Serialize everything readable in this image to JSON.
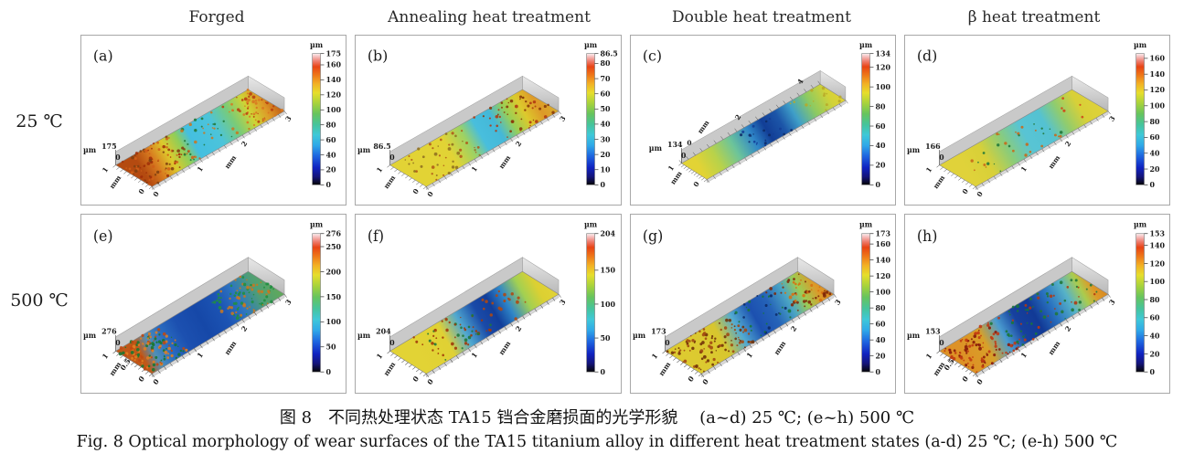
{
  "figure": {
    "column_headers": [
      "Forged",
      "Annealing heat treatment",
      "Double heat treatment",
      "β heat treatment"
    ],
    "row_labels": [
      "25 ℃",
      "500 ℃"
    ],
    "caption_zh": "图 8　不同热处理状态 TA15 铛合金磨损面的光学形貌　 (a~d) 25 ℃; (e~h) 500 ℃",
    "caption_en": "Fig. 8   Optical morphology of wear surfaces of the TA15 titanium alloy in different heat treatment states   (a-d) 25 ℃; (e-h) 500 ℃"
  },
  "chart_data": {
    "type": "heatmap",
    "variant": "3d-surface-profilometry",
    "z_unit": "µm",
    "xy_unit": "mm",
    "legend_position": "right-colorbar-per-panel",
    "colorbar_colors": [
      [
        "0%",
        "#050505"
      ],
      [
        "6%",
        "#141478"
      ],
      [
        "13%",
        "#1022c0"
      ],
      [
        "22%",
        "#1e66e0"
      ],
      [
        "30%",
        "#2fa8e8"
      ],
      [
        "38%",
        "#3fc8d8"
      ],
      [
        "46%",
        "#46c49a"
      ],
      [
        "54%",
        "#66c45e"
      ],
      [
        "62%",
        "#a6d23c"
      ],
      [
        "70%",
        "#e6de2c"
      ],
      [
        "77%",
        "#f2b024"
      ],
      [
        "84%",
        "#ee7418"
      ],
      [
        "90%",
        "#e84414"
      ],
      [
        "94%",
        "#ee7a6a"
      ],
      [
        "98%",
        "#f6c4c4"
      ],
      [
        "100%",
        "#fbefee"
      ]
    ],
    "panels": [
      {
        "id": "a",
        "label": "(a)",
        "row": "25 ℃",
        "column": "Forged",
        "z_max": 175,
        "z_max_label": "175",
        "z_min_label": "0",
        "colorbar_max": 175,
        "colorbar_ticks": [
          175,
          160,
          140,
          120,
          100,
          80,
          60,
          40,
          20,
          0
        ],
        "long_axis_ticks": [
          "0",
          "1",
          "2",
          "3"
        ],
        "long_axis_position": "bottom",
        "short_axis_ticks": [
          "1",
          "0"
        ],
        "narrow": false,
        "surface_gradient": [
          [
            "0%",
            "#b44a10"
          ],
          [
            "10%",
            "#d87c20"
          ],
          [
            "20%",
            "#ddc92c"
          ],
          [
            "30%",
            "#8fce58"
          ],
          [
            "38%",
            "#44bfe0"
          ],
          [
            "55%",
            "#4cc4da"
          ],
          [
            "68%",
            "#79cb78"
          ],
          [
            "80%",
            "#cfd434"
          ],
          [
            "90%",
            "#dd9928"
          ],
          [
            "100%",
            "#c05a14"
          ]
        ],
        "speckles": [
          {
            "from": 0.0,
            "to": 0.38,
            "count": 95,
            "colors": [
              "#a03008",
              "#d06018",
              "#804010"
            ]
          },
          {
            "from": 0.32,
            "to": 0.75,
            "count": 35,
            "colors": [
              "#207838",
              "#c87820"
            ]
          },
          {
            "from": 0.78,
            "to": 1.0,
            "count": 55,
            "colors": [
              "#b84010",
              "#d87820"
            ]
          }
        ]
      },
      {
        "id": "b",
        "label": "(b)",
        "row": "25 ℃",
        "column": "Annealing heat treatment",
        "z_max": 86.5,
        "z_max_label": "86.5",
        "z_min_label": "0",
        "colorbar_max": 86.5,
        "colorbar_ticks": [
          86.5,
          80,
          70,
          60,
          50,
          40,
          30,
          20,
          10,
          0
        ],
        "long_axis_ticks": [
          "0",
          "1",
          "2",
          "3"
        ],
        "long_axis_position": "bottom",
        "short_axis_ticks": [
          "1",
          "0"
        ],
        "narrow": false,
        "surface_gradient": [
          [
            "0%",
            "#e2d335"
          ],
          [
            "25%",
            "#e2d335"
          ],
          [
            "38%",
            "#9ed262"
          ],
          [
            "48%",
            "#48bedd"
          ],
          [
            "60%",
            "#44b8d8"
          ],
          [
            "70%",
            "#98cf56"
          ],
          [
            "80%",
            "#ddc92c"
          ],
          [
            "90%",
            "#dd9928"
          ],
          [
            "100%",
            "#d8ad2c"
          ]
        ],
        "speckles": [
          {
            "from": 0.05,
            "to": 0.5,
            "count": 45,
            "colors": [
              "#b05818",
              "#907020"
            ]
          },
          {
            "from": 0.62,
            "to": 1.0,
            "count": 50,
            "colors": [
              "#b03810",
              "#883808"
            ]
          }
        ]
      },
      {
        "id": "c",
        "label": "(c)",
        "row": "25 ℃",
        "column": "Double heat treatment",
        "z_max": 134,
        "z_max_label": "134",
        "z_min_label": "0",
        "colorbar_max": 134,
        "colorbar_ticks": [
          134,
          120,
          100,
          80,
          60,
          40,
          20,
          0
        ],
        "long_axis_ticks": [
          "2",
          "4"
        ],
        "long_axis_position": "top",
        "short_axis_ticks": [
          "1",
          "0"
        ],
        "narrow": true,
        "surface_gradient": [
          [
            "0%",
            "#e2d335"
          ],
          [
            "12%",
            "#b8d24a"
          ],
          [
            "25%",
            "#6cc49a"
          ],
          [
            "38%",
            "#2f86c8"
          ],
          [
            "48%",
            "#123e96"
          ],
          [
            "58%",
            "#1c55a8"
          ],
          [
            "68%",
            "#3f9fc8"
          ],
          [
            "80%",
            "#8cca62"
          ],
          [
            "92%",
            "#d2d238"
          ],
          [
            "100%",
            "#e2d335"
          ]
        ],
        "speckles": [
          {
            "from": 0.38,
            "to": 0.62,
            "count": 22,
            "colors": [
              "#0c2a66",
              "#123e96"
            ]
          },
          {
            "from": 0.75,
            "to": 1.0,
            "count": 14,
            "colors": [
              "#b8a828"
            ]
          }
        ]
      },
      {
        "id": "d",
        "label": "(d)",
        "row": "25 ℃",
        "column": "β heat treatment",
        "z_max": 166,
        "z_max_label": "166",
        "z_min_label": "0",
        "colorbar_max": 166,
        "colorbar_ticks": [
          160,
          140,
          120,
          100,
          80,
          60,
          40,
          20,
          0
        ],
        "long_axis_ticks": [
          "0",
          "1",
          "2",
          "3"
        ],
        "long_axis_position": "bottom",
        "short_axis_ticks": [
          "1",
          "0"
        ],
        "narrow": false,
        "surface_gradient": [
          [
            "0%",
            "#e0d23a"
          ],
          [
            "15%",
            "#d8d038"
          ],
          [
            "30%",
            "#8ccc78"
          ],
          [
            "45%",
            "#58c4d4"
          ],
          [
            "60%",
            "#54c2d2"
          ],
          [
            "72%",
            "#90cc6e"
          ],
          [
            "85%",
            "#d8d038"
          ],
          [
            "100%",
            "#e0d23a"
          ]
        ],
        "speckles": [
          {
            "from": 0.1,
            "to": 0.7,
            "count": 32,
            "colors": [
              "#c86818",
              "#207838"
            ]
          },
          {
            "from": 0.82,
            "to": 0.95,
            "count": 6,
            "colors": [
              "#d04818"
            ]
          }
        ]
      },
      {
        "id": "e",
        "label": "(e)",
        "row": "500 ℃",
        "column": "Forged",
        "z_max": 276,
        "z_max_label": "276",
        "z_min_label": "0",
        "colorbar_max": 276,
        "colorbar_ticks": [
          276,
          250,
          200,
          150,
          100,
          50,
          0
        ],
        "long_axis_ticks": [
          "0",
          "1",
          "2",
          "3"
        ],
        "long_axis_position": "bottom",
        "short_axis_ticks": [
          "1",
          "0.5",
          "0"
        ],
        "narrow": false,
        "surface_gradient": [
          [
            "0%",
            "#c05818"
          ],
          [
            "8%",
            "#5090b8"
          ],
          [
            "18%",
            "#2a6cc0"
          ],
          [
            "30%",
            "#1c50b0"
          ],
          [
            "45%",
            "#1648a8"
          ],
          [
            "60%",
            "#1c54b4"
          ],
          [
            "72%",
            "#2e74c0"
          ],
          [
            "85%",
            "#4e9e78"
          ],
          [
            "100%",
            "#62aa58"
          ]
        ],
        "speckles": [
          {
            "from": 0.0,
            "to": 0.3,
            "count": 120,
            "colors": [
              "#c04810",
              "#e08020",
              "#187830"
            ]
          },
          {
            "from": 0.65,
            "to": 1.0,
            "count": 85,
            "colors": [
              "#209040",
              "#c87820"
            ]
          }
        ]
      },
      {
        "id": "f",
        "label": "(f)",
        "row": "500 ℃",
        "column": "Annealing heat treatment",
        "z_max": 204,
        "z_max_label": "204",
        "z_min_label": "0",
        "colorbar_max": 204,
        "colorbar_ticks": [
          204,
          150,
          100,
          50,
          0
        ],
        "long_axis_ticks": [
          "0",
          "1",
          "2",
          "3"
        ],
        "long_axis_position": "bottom",
        "short_axis_ticks": [
          "1",
          "0"
        ],
        "narrow": false,
        "surface_gradient": [
          [
            "0%",
            "#e2d335"
          ],
          [
            "22%",
            "#e0d134"
          ],
          [
            "35%",
            "#50a8d0"
          ],
          [
            "48%",
            "#1a4aa8"
          ],
          [
            "58%",
            "#123e9a"
          ],
          [
            "68%",
            "#2f86c8"
          ],
          [
            "80%",
            "#a2d052"
          ],
          [
            "90%",
            "#dcd032"
          ],
          [
            "100%",
            "#e2d335"
          ]
        ],
        "speckles": [
          {
            "from": 0.15,
            "to": 0.55,
            "count": 55,
            "colors": [
              "#a03808",
              "#207838"
            ]
          },
          {
            "from": 0.6,
            "to": 0.85,
            "count": 18,
            "colors": [
              "#b04810"
            ]
          }
        ]
      },
      {
        "id": "g",
        "label": "(g)",
        "row": "500 ℃",
        "column": "Double heat treatment",
        "z_max": 173,
        "z_max_label": "173",
        "z_min_label": "0",
        "colorbar_max": 173,
        "colorbar_ticks": [
          173,
          160,
          140,
          120,
          100,
          80,
          60,
          40,
          20,
          0
        ],
        "long_axis_ticks": [
          "0",
          "1",
          "2",
          "3"
        ],
        "long_axis_position": "bottom",
        "short_axis_ticks": [
          "1",
          "0"
        ],
        "narrow": false,
        "surface_gradient": [
          [
            "0%",
            "#ddca30"
          ],
          [
            "22%",
            "#d8c62e"
          ],
          [
            "35%",
            "#52aad2"
          ],
          [
            "48%",
            "#1c50b0"
          ],
          [
            "60%",
            "#2563b8"
          ],
          [
            "72%",
            "#4aa4c4"
          ],
          [
            "82%",
            "#9ccc54"
          ],
          [
            "92%",
            "#dd9928"
          ],
          [
            "100%",
            "#d88820"
          ]
        ],
        "speckles": [
          {
            "from": 0.0,
            "to": 0.45,
            "count": 95,
            "colors": [
              "#703008",
              "#a04810"
            ]
          },
          {
            "from": 0.45,
            "to": 0.75,
            "count": 30,
            "colors": [
              "#0c2a66",
              "#187838"
            ]
          },
          {
            "from": 0.75,
            "to": 1.0,
            "count": 55,
            "colors": [
              "#802808",
              "#d87010"
            ]
          }
        ]
      },
      {
        "id": "h",
        "label": "(h)",
        "row": "500 ℃",
        "column": "β heat treatment",
        "z_max": 153,
        "z_max_label": "153",
        "z_min_label": "0",
        "colorbar_max": 153,
        "colorbar_ticks": [
          153,
          140,
          120,
          100,
          80,
          60,
          40,
          20,
          0
        ],
        "long_axis_ticks": [
          "0",
          "1",
          "2",
          "3"
        ],
        "long_axis_position": "bottom",
        "short_axis_ticks": [
          "1",
          "0.5",
          "0"
        ],
        "narrow": false,
        "surface_gradient": [
          [
            "0%",
            "#dd9226"
          ],
          [
            "15%",
            "#d8a028"
          ],
          [
            "28%",
            "#4a9cd0"
          ],
          [
            "40%",
            "#16409e"
          ],
          [
            "52%",
            "#123a96"
          ],
          [
            "64%",
            "#2a72c0"
          ],
          [
            "76%",
            "#56b2c8"
          ],
          [
            "86%",
            "#aacc4e"
          ],
          [
            "93%",
            "#dd9928"
          ],
          [
            "100%",
            "#d88820"
          ]
        ],
        "speckles": [
          {
            "from": 0.0,
            "to": 0.35,
            "count": 95,
            "colors": [
              "#881808",
              "#c03810"
            ]
          },
          {
            "from": 0.35,
            "to": 0.6,
            "count": 30,
            "colors": [
              "#187838",
              "#c03810"
            ]
          },
          {
            "from": 0.6,
            "to": 1.0,
            "count": 40,
            "colors": [
              "#207838",
              "#b03810"
            ]
          }
        ]
      }
    ]
  }
}
